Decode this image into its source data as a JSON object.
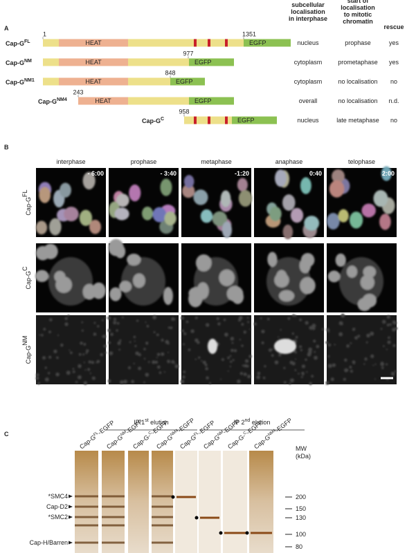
{
  "panel_a": {
    "label": "A",
    "headers": [
      [
        "subcellular",
        "localisation",
        "in interphase"
      ],
      [
        "start of",
        "localisation",
        "to mitotic",
        "chromatin"
      ],
      [
        "rescue"
      ]
    ],
    "heat": "HEAT",
    "egfp": "EGFP",
    "constructs": [
      {
        "name": "Cap-G",
        "sup": "FL",
        "positions": [
          "1",
          "1351"
        ],
        "localisation": "nucleus",
        "onset": "prophase",
        "rescue": "yes"
      },
      {
        "name": "Cap-G",
        "sup": "NM",
        "positions": [
          "977"
        ],
        "localisation": "cytoplasm",
        "onset": "prometaphase",
        "rescue": "yes"
      },
      {
        "name": "Cap-G",
        "sup": "NM1",
        "positions": [
          "848"
        ],
        "localisation": "cytoplasm",
        "onset": "no localisation",
        "rescue": "no"
      },
      {
        "name": "Cap-G",
        "sup": "NM4",
        "positions": [
          "243"
        ],
        "localisation": "overall",
        "onset": "no localisation",
        "rescue": "n.d."
      },
      {
        "name": "Cap-G",
        "sup": "C",
        "positions": [
          "958"
        ],
        "localisation": "nucleus",
        "onset": "late metaphase",
        "rescue": "no"
      }
    ]
  },
  "panel_b": {
    "label": "B",
    "phases": [
      "interphase",
      "prophase",
      "metaphase",
      "anaphase",
      "telophase"
    ],
    "times": [
      "- 6:00",
      "- 3:40",
      "-1:20",
      "0:40",
      "2:00"
    ],
    "rows": [
      {
        "name": "Cap-G",
        "sup": "FL"
      },
      {
        "name": "Cap-G",
        "sup": "C"
      },
      {
        "name": "Cap-G",
        "sup": "NM"
      }
    ]
  },
  "panel_c": {
    "label": "C",
    "elutions": [
      {
        "pre": "IP 1",
        "sup": "st",
        "post": " elution"
      },
      {
        "pre": "IP 2",
        "sup": "nd",
        "post": " elution"
      }
    ],
    "lanes": [
      {
        "name": "Cap-G",
        "sup": "FL",
        "suffix": "-EGFP"
      },
      {
        "name": "Cap-G",
        "sup": "NM",
        "suffix": "-EGFP"
      },
      {
        "name": "Cap-G-",
        "sup": "C",
        "suffix": "-EGFP"
      },
      {
        "name": "Cap-G",
        "sup": "NM4",
        "suffix": "-EGFP"
      },
      {
        "name": "Cap-G",
        "sup": "FL",
        "suffix": "-EGFP"
      },
      {
        "name": "Cap-G",
        "sup": "NM",
        "suffix": "-EGFP"
      },
      {
        "name": "Cap-G-",
        "sup": "C",
        "suffix": "-EGFP"
      },
      {
        "name": "Cap-G",
        "sup": "NM4",
        "suffix": "-EGFP"
      }
    ],
    "mw_title": [
      "MW",
      "(kDa)"
    ],
    "mw": [
      "200",
      "150",
      "130",
      "100",
      "80"
    ],
    "bands": [
      "*SMC4",
      "Cap-D2",
      "*SMC2",
      "Cap-H/Barren"
    ]
  }
}
